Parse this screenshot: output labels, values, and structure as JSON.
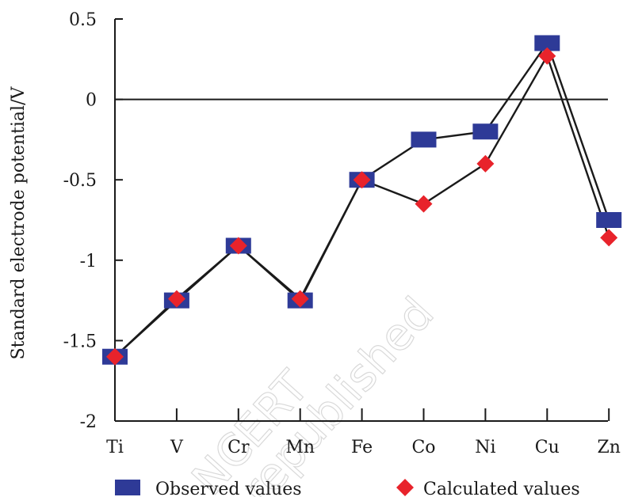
{
  "chart_data": {
    "type": "line",
    "ylabel": "Standard electrode potential/V",
    "ylim": [
      -2,
      0.5
    ],
    "yticks": [
      {
        "value": 0.5,
        "label": "0.5"
      },
      {
        "value": 0,
        "label": "0"
      },
      {
        "value": -0.5,
        "label": "-0.5"
      },
      {
        "value": -1,
        "label": "-1"
      },
      {
        "value": -1.5,
        "label": "-1.5"
      },
      {
        "value": -2,
        "label": "-2"
      }
    ],
    "categories": [
      "Ti",
      "V",
      "Cr",
      "Mn",
      "Fe",
      "Co",
      "Ni",
      "Cu",
      "Zn"
    ],
    "series": [
      {
        "name": "Observed values",
        "marker": "square",
        "color": "#2e3a97",
        "values": [
          -1.6,
          -1.25,
          -0.91,
          -1.25,
          -0.5,
          -0.25,
          -0.2,
          0.35,
          -0.75
        ]
      },
      {
        "name": "Calculated values",
        "marker": "diamond",
        "color": "#e8232b",
        "values": [
          -1.6,
          -1.24,
          -0.91,
          -1.24,
          -0.5,
          -0.65,
          -0.4,
          0.27,
          -0.86
        ]
      }
    ],
    "zero_line": true,
    "line_color": "#1a1a1a",
    "legend_position": "bottom",
    "watermark": "NCERT republished"
  }
}
